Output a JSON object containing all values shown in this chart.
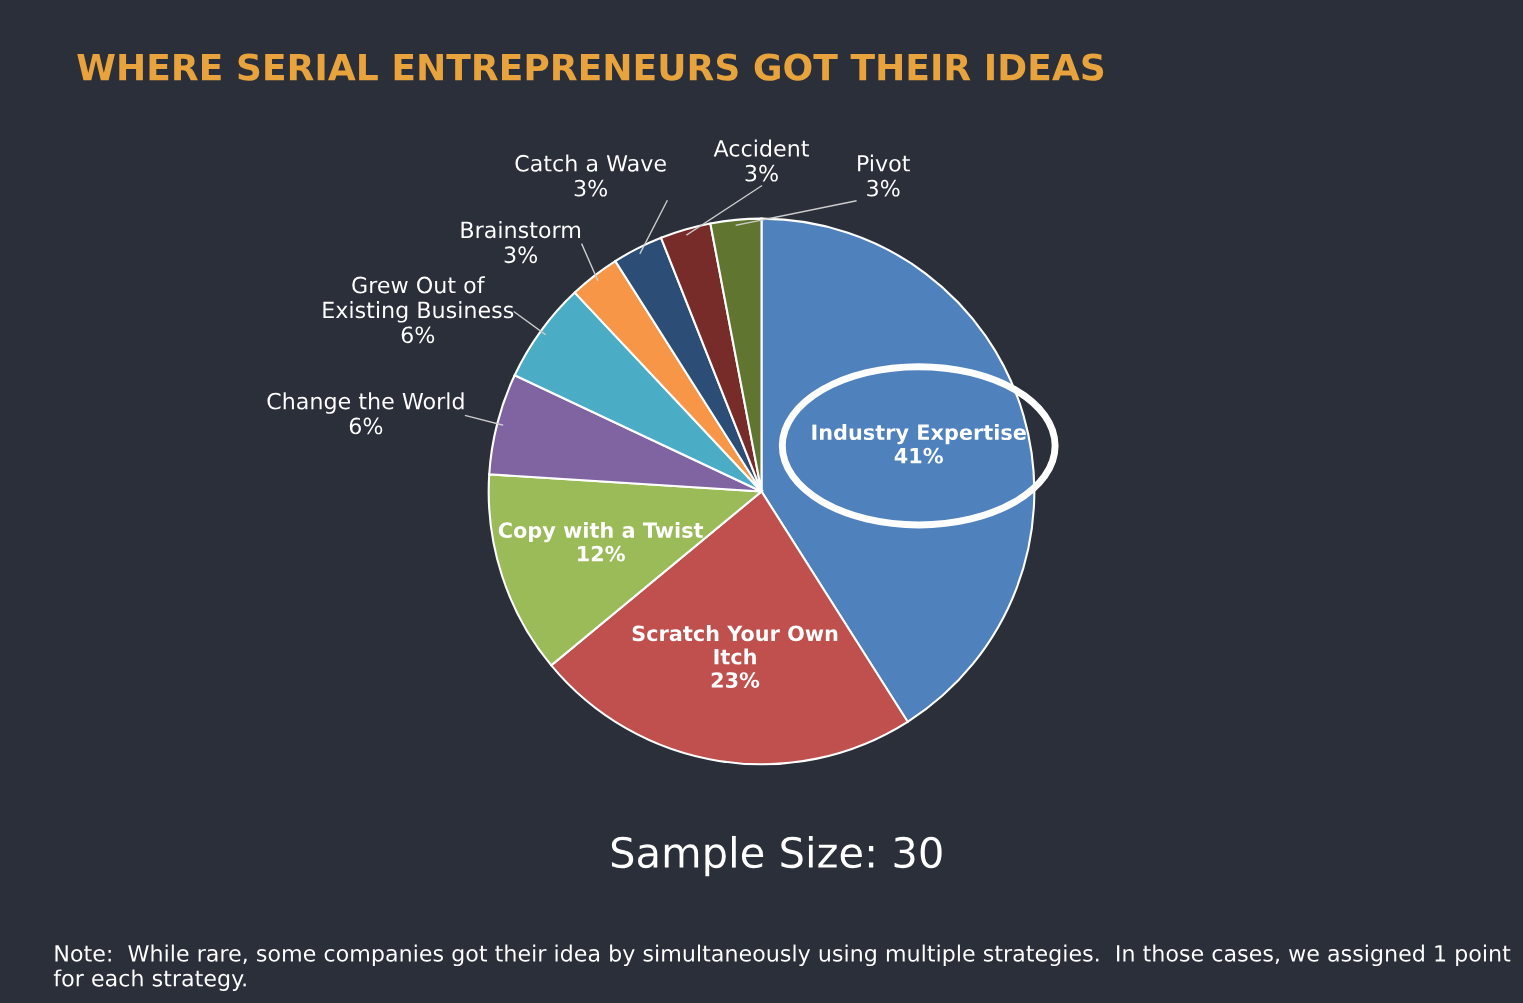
{
  "chart_data": {
    "type": "pie",
    "title": "WHERE SERIAL ENTREPRENEURS GOT THEIR IDEAS",
    "categories": [
      "Industry Expertise",
      "Scratch Your Own\nItch",
      "Copy with a Twist",
      "Change the World",
      "Grew Out of\nExisting Business",
      "Brainstorm",
      "Catch a Wave",
      "Accident",
      "Pivot"
    ],
    "values": [
      41,
      23,
      12,
      6,
      6,
      3,
      3,
      3,
      3
    ],
    "value_labels": [
      "41%",
      "23%",
      "12%",
      "6%",
      "6%",
      "3%",
      "3%",
      "3%",
      "3%"
    ],
    "colors": [
      "#4f81bd",
      "#c0504d",
      "#9bbb59",
      "#8064a2",
      "#4bacc6",
      "#f79646",
      "#2c4d75",
      "#772c2a",
      "#5f7530"
    ],
    "annotations": [
      "Sample Size: 30",
      "Note:  While rare, some companies got their idea by simultaneously using multiple strategies.  In those cases, we assigned 1 point for each strategy."
    ]
  }
}
